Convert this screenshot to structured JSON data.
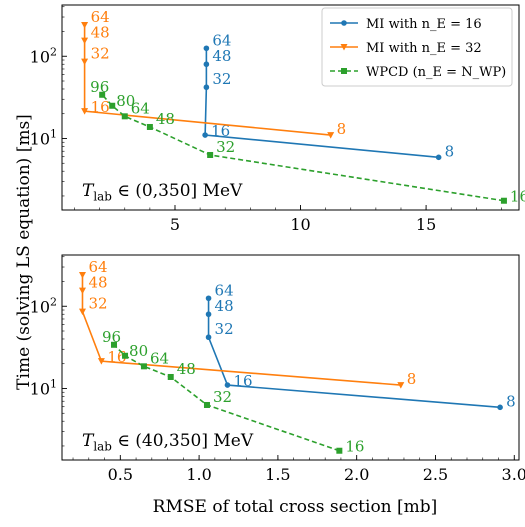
{
  "figure": {
    "shared_ylabel": "Time (solving LS equation) [ms]",
    "shared_xlabel": "RMSE of total cross section [mb]"
  },
  "legend": {
    "placement": "top-right of upper panel",
    "entries": [
      {
        "label": "MI with n_E = 16",
        "color": "#1f77b4",
        "marker": "circle"
      },
      {
        "label": "MI with n_E = 32",
        "color": "#ff7f0e",
        "marker": "triangle-down"
      },
      {
        "label": "WPCD (n_E = N_WP)",
        "color": "#2ca02c",
        "marker": "square",
        "dashed": true
      }
    ]
  },
  "colors": {
    "blue": "#1f77b4",
    "orange": "#ff7f0e",
    "green": "#2ca02c"
  },
  "chart_data": [
    {
      "type": "line",
      "annotation": "T_lab ∈ (0,350] MeV",
      "xlabel": "",
      "ylabel": "Time (solving LS equation) [ms]",
      "yscale": "log",
      "xlim": [
        0.5,
        18.7
      ],
      "ylim": [
        1.35,
        420
      ],
      "x_ticks": [
        5,
        10,
        15
      ],
      "y_ticks": [
        10,
        100
      ],
      "series": [
        {
          "name": "MI with n_E = 16",
          "color": "#1f77b4",
          "marker": "circle",
          "dashed": false,
          "points": [
            {
              "label": "8",
              "x": 15.5,
              "y": 5.9
            },
            {
              "label": "16",
              "x": 6.2,
              "y": 11.0
            },
            {
              "label": "32",
              "x": 6.25,
              "y": 42
            },
            {
              "label": "48",
              "x": 6.25,
              "y": 80
            },
            {
              "label": "64",
              "x": 6.25,
              "y": 125
            }
          ]
        },
        {
          "name": "MI with n_E = 32",
          "color": "#ff7f0e",
          "marker": "triangle-down",
          "dashed": false,
          "points": [
            {
              "label": "8",
              "x": 11.2,
              "y": 11.0
            },
            {
              "label": "16",
              "x": 1.4,
              "y": 21.5
            },
            {
              "label": "32",
              "x": 1.4,
              "y": 86
            },
            {
              "label": "48",
              "x": 1.4,
              "y": 155
            },
            {
              "label": "64",
              "x": 1.4,
              "y": 240
            }
          ]
        },
        {
          "name": "WPCD (n_E = N_WP)",
          "color": "#2ca02c",
          "marker": "square",
          "dashed": true,
          "points": [
            {
              "label": "16",
              "x": 18.1,
              "y": 1.75
            },
            {
              "label": "32",
              "x": 6.4,
              "y": 6.3
            },
            {
              "label": "48",
              "x": 4.0,
              "y": 13.8
            },
            {
              "label": "64",
              "x": 3.0,
              "y": 18.6
            },
            {
              "label": "80",
              "x": 2.5,
              "y": 25
            },
            {
              "label": "96",
              "x": 2.1,
              "y": 34
            }
          ]
        }
      ]
    },
    {
      "type": "line",
      "annotation": "T_lab ∈ (40,350] MeV",
      "xlabel": "RMSE of total cross section [mb]",
      "ylabel": "Time (solving LS equation) [ms]",
      "yscale": "log",
      "xlim": [
        0.13,
        3.03
      ],
      "ylim": [
        1.35,
        420
      ],
      "x_ticks": [
        0.5,
        1.0,
        1.5,
        2.0,
        2.5,
        3.0
      ],
      "x_tick_labels": [
        "0.5",
        "1.0",
        "1.5",
        "2.0",
        "2.5",
        "3.0"
      ],
      "y_ticks": [
        10,
        100
      ],
      "series": [
        {
          "name": "MI with n_E = 16",
          "color": "#1f77b4",
          "marker": "circle",
          "dashed": false,
          "points": [
            {
              "label": "8",
              "x": 2.91,
              "y": 5.9
            },
            {
              "label": "16",
              "x": 1.18,
              "y": 11.0
            },
            {
              "label": "32",
              "x": 1.06,
              "y": 42
            },
            {
              "label": "48",
              "x": 1.06,
              "y": 80
            },
            {
              "label": "64",
              "x": 1.06,
              "y": 125
            }
          ]
        },
        {
          "name": "MI with n_E = 32",
          "color": "#ff7f0e",
          "marker": "triangle-down",
          "dashed": false,
          "points": [
            {
              "label": "8",
              "x": 2.28,
              "y": 11.0
            },
            {
              "label": "16",
              "x": 0.38,
              "y": 21.5
            },
            {
              "label": "32",
              "x": 0.26,
              "y": 86
            },
            {
              "label": "48",
              "x": 0.26,
              "y": 155
            },
            {
              "label": "64",
              "x": 0.26,
              "y": 240
            }
          ]
        },
        {
          "name": "WPCD (n_E = N_WP)",
          "color": "#2ca02c",
          "marker": "square",
          "dashed": true,
          "points": [
            {
              "label": "16",
              "x": 1.89,
              "y": 1.75
            },
            {
              "label": "32",
              "x": 1.05,
              "y": 6.3
            },
            {
              "label": "48",
              "x": 0.82,
              "y": 13.8
            },
            {
              "label": "64",
              "x": 0.65,
              "y": 18.6
            },
            {
              "label": "80",
              "x": 0.53,
              "y": 25
            },
            {
              "label": "96",
              "x": 0.46,
              "y": 34
            }
          ]
        }
      ]
    }
  ]
}
